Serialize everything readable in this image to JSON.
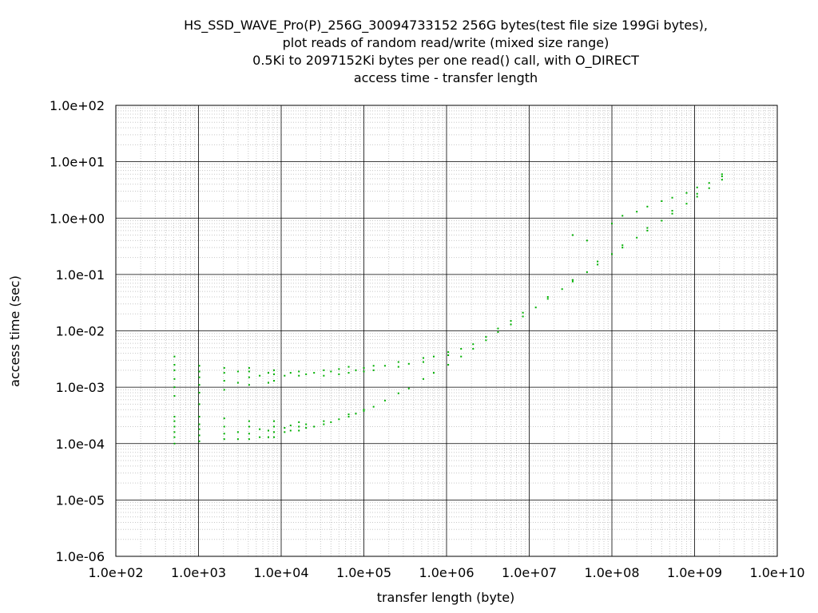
{
  "chart_data": {
    "type": "scatter",
    "title_lines": [
      "HS_SSD_WAVE_Pro(P)_256G_30094733152 256G bytes(test file size 199Gi bytes),",
      "plot reads of random read/write (mixed size range)",
      "0.5Ki to 2097152Ki bytes per one read() call, with O_DIRECT",
      "access time - transfer length"
    ],
    "xlabel": "transfer length (byte)",
    "ylabel": "access time (sec)",
    "xscale": "log",
    "yscale": "log",
    "xlim": [
      100,
      10000000000
    ],
    "ylim": [
      1e-06,
      100
    ],
    "x_ticks": [
      100,
      1000,
      10000,
      100000,
      1000000,
      10000000,
      100000000,
      1000000000,
      10000000000
    ],
    "x_tick_labels": [
      "1.0e+02",
      "1.0e+03",
      "1.0e+04",
      "1.0e+05",
      "1.0e+06",
      "1.0e+07",
      "1.0e+08",
      "1.0e+09",
      "1.0e+10"
    ],
    "y_ticks": [
      100,
      10,
      1,
      0.1,
      0.01,
      0.001,
      0.0001,
      1e-05,
      1e-06
    ],
    "y_tick_labels": [
      "1.0e+02",
      "1.0e+01",
      "1.0e+00",
      "1.0e-01",
      "1.0e-02",
      "1.0e-03",
      "1.0e-04",
      "1.0e-05",
      "1.0e-06"
    ],
    "grid": true,
    "color": "#00b000",
    "series": [
      {
        "points": [
          [
            512,
            0.0001
          ],
          [
            512,
            0.00013
          ],
          [
            512,
            0.00016
          ],
          [
            512,
            0.0002
          ],
          [
            512,
            0.00025
          ],
          [
            512,
            0.0003
          ],
          [
            512,
            0.0007
          ],
          [
            512,
            0.001
          ],
          [
            512,
            0.0014
          ],
          [
            512,
            0.002
          ],
          [
            512,
            0.0025
          ],
          [
            512,
            0.0035
          ],
          [
            1024,
            0.00011
          ],
          [
            1024,
            0.00014
          ],
          [
            1024,
            0.00018
          ],
          [
            1024,
            0.00022
          ],
          [
            1024,
            0.0003
          ],
          [
            1024,
            0.0005
          ],
          [
            1024,
            0.0008
          ],
          [
            1024,
            0.0011
          ],
          [
            1024,
            0.0015
          ],
          [
            1024,
            0.0019
          ],
          [
            1024,
            0.0024
          ],
          [
            2048,
            0.00012
          ],
          [
            2048,
            0.00015
          ],
          [
            2048,
            0.0002
          ],
          [
            2048,
            0.00028
          ],
          [
            2048,
            0.0009
          ],
          [
            2048,
            0.0013
          ],
          [
            2048,
            0.0018
          ],
          [
            2048,
            0.0022
          ],
          [
            3000,
            0.00012
          ],
          [
            3000,
            0.00016
          ],
          [
            3000,
            0.0012
          ],
          [
            3000,
            0.0019
          ],
          [
            4096,
            0.00012
          ],
          [
            4096,
            0.00015
          ],
          [
            4096,
            0.0002
          ],
          [
            4096,
            0.00025
          ],
          [
            4096,
            0.0011
          ],
          [
            4096,
            0.0015
          ],
          [
            4096,
            0.0019
          ],
          [
            4096,
            0.0022
          ],
          [
            5500,
            0.00013
          ],
          [
            5500,
            0.00018
          ],
          [
            5500,
            0.0016
          ],
          [
            7000,
            0.00013
          ],
          [
            7000,
            0.00017
          ],
          [
            7000,
            0.0012
          ],
          [
            7000,
            0.0018
          ],
          [
            8192,
            0.00013
          ],
          [
            8192,
            0.00016
          ],
          [
            8192,
            0.0002
          ],
          [
            8192,
            0.00025
          ],
          [
            8192,
            0.0013
          ],
          [
            8192,
            0.0017
          ],
          [
            8192,
            0.002
          ],
          [
            11000,
            0.00016
          ],
          [
            11000,
            0.00019
          ],
          [
            11000,
            0.0016
          ],
          [
            13000,
            0.00017
          ],
          [
            13000,
            0.00021
          ],
          [
            13000,
            0.0018
          ],
          [
            16384,
            0.00017
          ],
          [
            16384,
            0.0002
          ],
          [
            16384,
            0.00024
          ],
          [
            16384,
            0.0016
          ],
          [
            16384,
            0.0019
          ],
          [
            20000,
            0.00019
          ],
          [
            20000,
            0.00022
          ],
          [
            20000,
            0.0017
          ],
          [
            25000,
            0.0002
          ],
          [
            25000,
            0.0018
          ],
          [
            32768,
            0.00022
          ],
          [
            32768,
            0.00025
          ],
          [
            32768,
            0.0016
          ],
          [
            32768,
            0.002
          ],
          [
            40000,
            0.00024
          ],
          [
            40000,
            0.0019
          ],
          [
            50000,
            0.00027
          ],
          [
            50000,
            0.0017
          ],
          [
            50000,
            0.0021
          ],
          [
            65536,
            0.0003
          ],
          [
            65536,
            0.00033
          ],
          [
            65536,
            0.0018
          ],
          [
            65536,
            0.0023
          ],
          [
            80000,
            0.00034
          ],
          [
            80000,
            0.002
          ],
          [
            100000,
            0.00038
          ],
          [
            100000,
            0.0004
          ],
          [
            100000,
            0.0019
          ],
          [
            100000,
            0.0022
          ],
          [
            131072,
            0.00045
          ],
          [
            131072,
            0.002
          ],
          [
            131072,
            0.0024
          ],
          [
            180000,
            0.00058
          ],
          [
            180000,
            0.0024
          ],
          [
            262144,
            0.00078
          ],
          [
            262144,
            0.0023
          ],
          [
            262144,
            0.0028
          ],
          [
            350000,
            0.00095
          ],
          [
            350000,
            0.0026
          ],
          [
            524288,
            0.0014
          ],
          [
            524288,
            0.0028
          ],
          [
            524288,
            0.0033
          ],
          [
            700000,
            0.0018
          ],
          [
            700000,
            0.0035
          ],
          [
            1048576,
            0.0025
          ],
          [
            1048576,
            0.0037
          ],
          [
            1048576,
            0.0042
          ],
          [
            1500000,
            0.0035
          ],
          [
            1500000,
            0.0048
          ],
          [
            2097152,
            0.0048
          ],
          [
            2097152,
            0.0058
          ],
          [
            3000000,
            0.0068
          ],
          [
            3000000,
            0.0078
          ],
          [
            4194304,
            0.0095
          ],
          [
            4194304,
            0.011
          ],
          [
            6000000,
            0.013
          ],
          [
            6000000,
            0.015
          ],
          [
            8388608,
            0.018
          ],
          [
            8388608,
            0.021
          ],
          [
            12000000,
            0.026
          ],
          [
            16777216,
            0.037
          ],
          [
            16777216,
            0.04
          ],
          [
            25000000,
            0.055
          ],
          [
            33554432,
            0.075
          ],
          [
            33554432,
            0.08
          ],
          [
            33554432,
            0.5
          ],
          [
            50000000,
            0.11
          ],
          [
            50000000,
            0.4
          ],
          [
            67108864,
            0.15
          ],
          [
            67108864,
            0.17
          ],
          [
            100000000,
            0.23
          ],
          [
            100000000,
            0.8
          ],
          [
            134217728,
            0.3
          ],
          [
            134217728,
            0.33
          ],
          [
            134217728,
            1.1
          ],
          [
            200000000,
            0.45
          ],
          [
            200000000,
            1.3
          ],
          [
            268435456,
            0.6
          ],
          [
            268435456,
            0.67
          ],
          [
            268435456,
            1.6
          ],
          [
            400000000,
            0.9
          ],
          [
            400000000,
            2
          ],
          [
            536870912,
            1.2
          ],
          [
            536870912,
            1.35
          ],
          [
            536870912,
            2.3
          ],
          [
            800000000,
            1.8
          ],
          [
            800000000,
            2.8
          ],
          [
            1073741824,
            2.4
          ],
          [
            1073741824,
            2.7
          ],
          [
            1073741824,
            3.5
          ],
          [
            1500000000,
            3.4
          ],
          [
            1500000000,
            4.2
          ],
          [
            2147483648,
            4.8
          ],
          [
            2147483648,
            5.5
          ],
          [
            2147483648,
            6
          ]
        ]
      }
    ]
  }
}
